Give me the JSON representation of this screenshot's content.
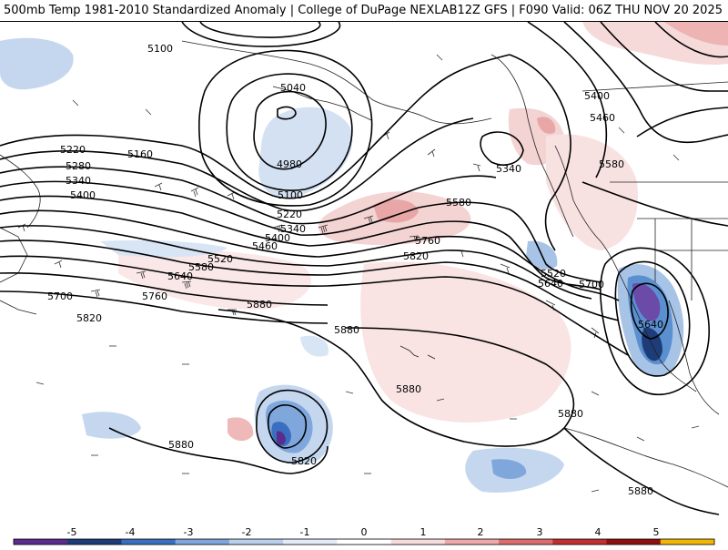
{
  "header": {
    "title_left": "500mb Temp 1981-2010 Standardized Anomaly | College of DuPage NEXLAB",
    "title_right": "12Z GFS | F090 Valid: 06Z THU NOV 20 2025"
  },
  "contour_labels": [
    "5100",
    "5040",
    "4980",
    "5100",
    "5160",
    "5220",
    "5280",
    "5340",
    "5400",
    "5220",
    "5340",
    "5400",
    "5460",
    "5520",
    "5580",
    "5640",
    "5700",
    "5760",
    "5820",
    "5880",
    "5880",
    "5880",
    "5880",
    "5880",
    "5820",
    "5340",
    "5400",
    "5460",
    "5580",
    "5580",
    "5760",
    "5820",
    "5520",
    "5640",
    "5700",
    "5640",
    "5880"
  ],
  "colorbar": {
    "ticks": [
      "-5",
      "-4",
      "-3",
      "-2",
      "-1",
      "0",
      "1",
      "2",
      "3",
      "4",
      "5"
    ],
    "colors": [
      "#5a2d8c",
      "#1e3c78",
      "#3a6fc0",
      "#7fa7dc",
      "#b9d0ec",
      "#e3ecf8",
      "#ffffff",
      "#f7dcdc",
      "#eeaaaa",
      "#dd6e6e",
      "#c03030",
      "#8c1010",
      "#f2b705"
    ]
  }
}
